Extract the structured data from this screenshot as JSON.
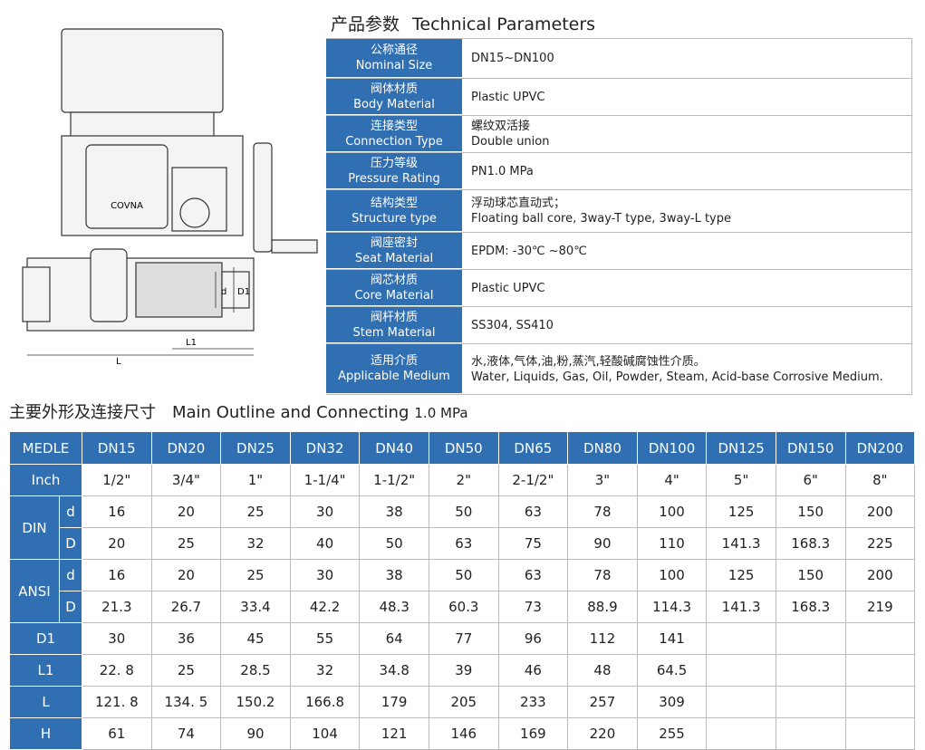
{
  "drawing": {
    "brand": "COVNA",
    "dims": {
      "d": "d",
      "D1": "D1",
      "L1": "L1",
      "L": "L"
    }
  },
  "params": {
    "title_cn": "产品参数",
    "title_en": "Technical Parameters",
    "rows": [
      {
        "label_cn": "公称通径",
        "label_en": "Nominal Size",
        "value": [
          "DN15~DN100"
        ]
      },
      {
        "label_cn": "阀体材质",
        "label_en": "Body Material",
        "value": [
          "Plastic UPVC"
        ]
      },
      {
        "label_cn": "连接类型",
        "label_en": "Connection Type",
        "value": [
          "螺纹双活接",
          "Double union"
        ]
      },
      {
        "label_cn": "压力等级",
        "label_en": "Pressure Rating",
        "value": [
          "PN1.0 MPa"
        ]
      },
      {
        "label_cn": "结构类型",
        "label_en": "Structure type",
        "value": [
          "浮动球芯直动式；",
          "Floating ball core, 3way-T type, 3way-L type"
        ]
      },
      {
        "label_cn": "阀座密封",
        "label_en": "Seat Material",
        "value": [
          "EPDM: -30℃ ~80℃"
        ]
      },
      {
        "label_cn": "阀芯材质",
        "label_en": "Core Material",
        "value": [
          "Plastic UPVC"
        ]
      },
      {
        "label_cn": "阀杆材质",
        "label_en": "Stem Material",
        "value": [
          "SS304, SS410"
        ]
      },
      {
        "label_cn": "适用介质",
        "label_en": "Applicable Medium",
        "value": [
          "水,液体,气体,油,粉,蒸汽,轻酸碱腐蚀性介质。",
          "Water, Liquids, Gas, Oil, Powder, Steam, Acid-base Corrosive Medium."
        ]
      }
    ]
  },
  "outline": {
    "title_cn": "主要外形及连接尺寸",
    "title_en": "Main Outline and Connecting",
    "pressure": "1.0 MPa"
  },
  "table": {
    "header": [
      "MEDLE",
      "DN15",
      "DN20",
      "DN25",
      "DN32",
      "DN40",
      "DN50",
      "DN65",
      "DN80",
      "DN100",
      "DN125",
      "DN150",
      "DN200"
    ],
    "rows": [
      {
        "label": "Inch",
        "cells": [
          "1/2\"",
          "3/4\"",
          "1\"",
          "1-1/4\"",
          "1-1/2\"",
          "2\"",
          "2-1/2\"",
          "3\"",
          "4\"",
          "5\"",
          "6\"",
          "8\""
        ]
      },
      {
        "label": "DIN",
        "subrows": [
          {
            "label": "d",
            "cells": [
              "16",
              "20",
              "25",
              "30",
              "38",
              "50",
              "63",
              "78",
              "100",
              "125",
              "150",
              "200"
            ]
          },
          {
            "label": "D",
            "cells": [
              "20",
              "25",
              "32",
              "40",
              "50",
              "63",
              "75",
              "90",
              "110",
              "141.3",
              "168.3",
              "225"
            ]
          }
        ]
      },
      {
        "label": "ANSI",
        "subrows": [
          {
            "label": "d",
            "cells": [
              "16",
              "20",
              "25",
              "30",
              "38",
              "50",
              "63",
              "78",
              "100",
              "125",
              "150",
              "200"
            ]
          },
          {
            "label": "D",
            "cells": [
              "21.3",
              "26.7",
              "33.4",
              "42.2",
              "48.3",
              "60.3",
              "73",
              "88.9",
              "114.3",
              "141.3",
              "168.3",
              "219"
            ]
          }
        ]
      },
      {
        "label": "D1",
        "cells": [
          "30",
          "36",
          "45",
          "55",
          "64",
          "77",
          "96",
          "112",
          "141"
        ]
      },
      {
        "label": "L1",
        "cells": [
          "22. 8",
          "25",
          "28.5",
          "32",
          "34.8",
          "39",
          "46",
          "48",
          "64.5"
        ]
      },
      {
        "label": "L",
        "cells": [
          "121. 8",
          "134. 5",
          "150.2",
          "166.8",
          "179",
          "205",
          "233",
          "257",
          "309"
        ]
      },
      {
        "label": "H",
        "cells": [
          "61",
          "74",
          "90",
          "104",
          "121",
          "146",
          "169",
          "220",
          "255"
        ]
      }
    ]
  }
}
